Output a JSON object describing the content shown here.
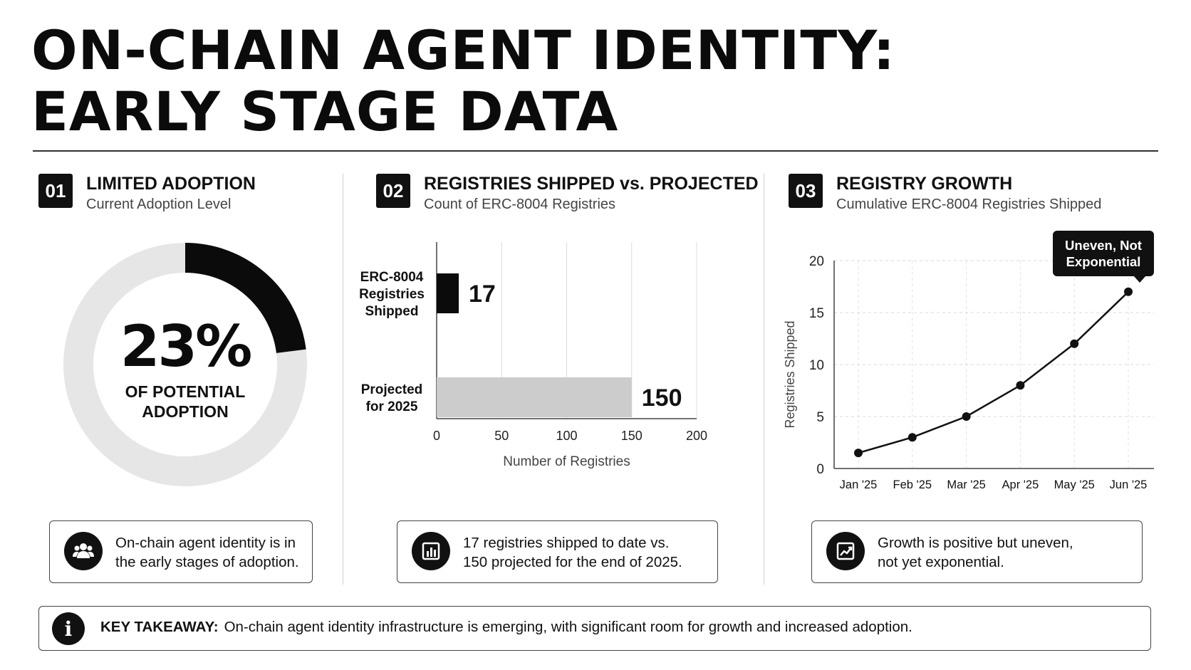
{
  "title_line1": "ON-CHAIN AGENT IDENTITY:",
  "title_line2": "EARLY STAGE DATA",
  "panels": [
    {
      "number": "01",
      "title": "LIMITED ADOPTION",
      "subtitle": "Current Adoption Level",
      "callout_lines": [
        "On-chain agent identity is in",
        "the early stages of adoption."
      ],
      "callout_icon": "users-icon"
    },
    {
      "number": "02",
      "title": "REGISTRIES SHIPPED vs. PROJECTED",
      "subtitle": "Count of ERC-8004 Registries",
      "callout_lines": [
        "17 registries shipped to date vs.",
        "150 projected for the end of 2025."
      ],
      "callout_icon": "bar-chart-icon"
    },
    {
      "number": "03",
      "title": "REGISTRY GROWTH",
      "subtitle": "Cumulative ERC-8004 Registries Shipped",
      "callout_lines": [
        "Growth is positive but uneven,",
        "not yet exponential."
      ],
      "callout_icon": "trend-up-icon"
    }
  ],
  "takeaway": {
    "label": "KEY TAKEAWAY:",
    "text": "On-chain agent identity infrastructure is emerging, with significant room for growth and increased adoption.",
    "icon": "info-icon"
  },
  "chart_data": [
    {
      "type": "pie",
      "subtype": "donut",
      "value_percent": 23,
      "center_value": "23%",
      "center_label": "OF POTENTIAL ADOPTION",
      "colors": {
        "filled": "#0b0b0b",
        "remaining": "#e6e6e6"
      }
    },
    {
      "type": "bar",
      "orientation": "horizontal",
      "categories": [
        "ERC-8004 Registries Shipped",
        "Projected for 2025"
      ],
      "category_lines": [
        [
          "ERC-8004",
          "Registries",
          "Shipped"
        ],
        [
          "Projected",
          "for 2025"
        ]
      ],
      "values": [
        17,
        150
      ],
      "value_labels": [
        "17",
        "150"
      ],
      "bar_colors": [
        "#0b0b0b",
        "#cccccc"
      ],
      "xlabel": "Number of Registries",
      "xlim": [
        0,
        200
      ],
      "xticks": [
        0,
        50,
        100,
        150,
        200
      ],
      "grid": true
    },
    {
      "type": "line",
      "x": [
        "Jan '25",
        "Feb '25",
        "Mar '25",
        "Apr '25",
        "May '25",
        "Jun '25"
      ],
      "values": [
        1.5,
        3,
        5,
        8,
        12,
        17
      ],
      "ylabel": "Registries Shipped",
      "ylim": [
        0,
        20
      ],
      "yticks": [
        0,
        5,
        10,
        15,
        20
      ],
      "grid": true,
      "annotation": {
        "text_lines": [
          "Uneven, Not",
          "Exponential"
        ],
        "point": "Jun '25"
      },
      "line_color": "#111111"
    }
  ]
}
